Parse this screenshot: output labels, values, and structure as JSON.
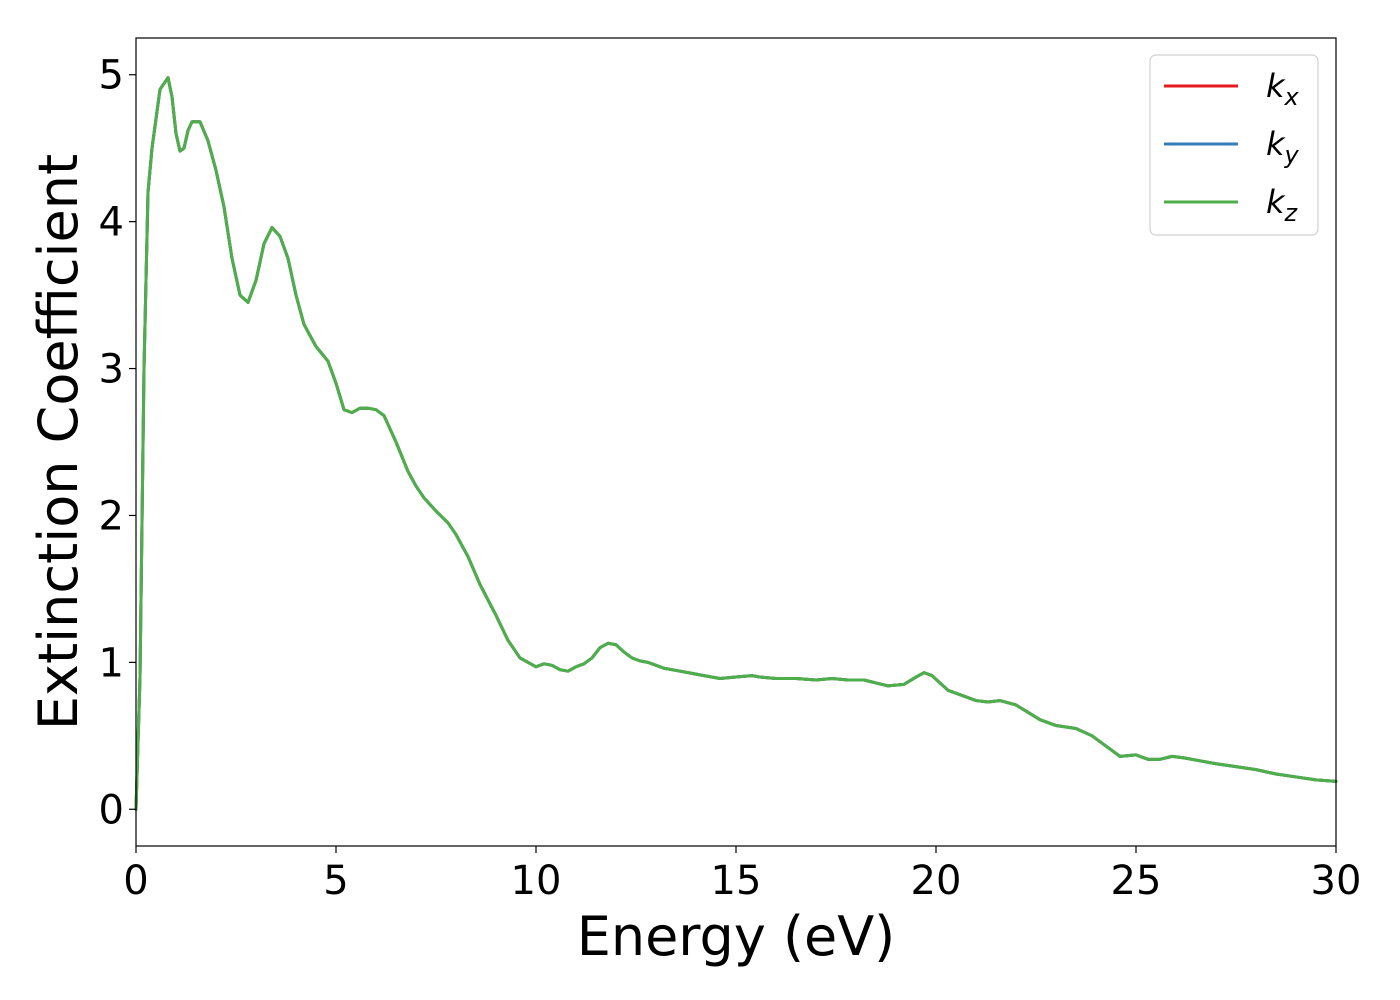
{
  "chart_data": {
    "type": "line",
    "title": "",
    "xlabel": "Energy (eV)",
    "ylabel": "Extinction Coefficient",
    "xlim": [
      0,
      30
    ],
    "ylim": [
      -0.25,
      5.25
    ],
    "xticks": [
      0,
      5,
      10,
      15,
      20,
      25,
      30
    ],
    "xtick_labels": [
      "0",
      "5",
      "10",
      "15",
      "20",
      "25",
      "30"
    ],
    "yticks": [
      0,
      1,
      2,
      3,
      4,
      5
    ],
    "ytick_labels": [
      "0",
      "1",
      "2",
      "3",
      "4",
      "5"
    ],
    "grid": false,
    "legend_position": "top-right",
    "x": [
      0,
      0.1,
      0.2,
      0.3,
      0.4,
      0.5,
      0.6,
      0.8,
      0.9,
      1.0,
      1.1,
      1.2,
      1.3,
      1.4,
      1.6,
      1.8,
      2.0,
      2.2,
      2.4,
      2.6,
      2.8,
      3.0,
      3.2,
      3.4,
      3.6,
      3.8,
      4.0,
      4.2,
      4.5,
      4.8,
      5.0,
      5.2,
      5.4,
      5.6,
      5.8,
      6.0,
      6.2,
      6.5,
      6.8,
      7.0,
      7.2,
      7.5,
      7.8,
      8.0,
      8.3,
      8.6,
      9.0,
      9.3,
      9.6,
      10.0,
      10.2,
      10.4,
      10.6,
      10.8,
      11.0,
      11.2,
      11.4,
      11.6,
      11.8,
      12.0,
      12.2,
      12.4,
      12.6,
      12.8,
      13.0,
      13.2,
      13.4,
      13.8,
      14.2,
      14.6,
      15.0,
      15.4,
      15.6,
      16.0,
      16.5,
      17.0,
      17.4,
      17.8,
      18.2,
      18.5,
      18.8,
      19.2,
      19.5,
      19.7,
      19.9,
      20.1,
      20.3,
      20.6,
      21.0,
      21.3,
      21.6,
      22.0,
      22.3,
      22.6,
      23.0,
      23.5,
      23.9,
      24.3,
      24.6,
      25.0,
      25.3,
      25.6,
      25.9,
      26.2,
      26.6,
      27.0,
      27.5,
      28.0,
      28.5,
      29.0,
      29.5,
      30.0
    ],
    "series": [
      {
        "name": "k_x",
        "color": "#e41a1c",
        "values": [
          0.0,
          0.9,
          3.0,
          4.2,
          4.5,
          4.7,
          4.9,
          4.98,
          4.85,
          4.6,
          4.48,
          4.5,
          4.62,
          4.68,
          4.68,
          4.55,
          4.35,
          4.1,
          3.75,
          3.5,
          3.45,
          3.6,
          3.85,
          3.96,
          3.9,
          3.75,
          3.5,
          3.3,
          3.15,
          3.05,
          2.9,
          2.72,
          2.7,
          2.73,
          2.73,
          2.72,
          2.68,
          2.5,
          2.3,
          2.2,
          2.12,
          2.03,
          1.95,
          1.87,
          1.72,
          1.53,
          1.32,
          1.15,
          1.03,
          0.97,
          0.99,
          0.98,
          0.95,
          0.94,
          0.97,
          0.99,
          1.03,
          1.1,
          1.13,
          1.12,
          1.07,
          1.03,
          1.01,
          1.0,
          0.98,
          0.96,
          0.95,
          0.93,
          0.91,
          0.89,
          0.9,
          0.91,
          0.9,
          0.89,
          0.89,
          0.88,
          0.89,
          0.88,
          0.88,
          0.86,
          0.84,
          0.85,
          0.9,
          0.93,
          0.91,
          0.86,
          0.81,
          0.78,
          0.74,
          0.73,
          0.74,
          0.71,
          0.66,
          0.61,
          0.57,
          0.55,
          0.5,
          0.42,
          0.36,
          0.37,
          0.34,
          0.34,
          0.36,
          0.35,
          0.33,
          0.31,
          0.29,
          0.27,
          0.24,
          0.22,
          0.2,
          0.19
        ]
      },
      {
        "name": "k_y",
        "color": "#377eb8",
        "values": [
          0.0,
          0.9,
          3.0,
          4.2,
          4.5,
          4.7,
          4.9,
          4.98,
          4.85,
          4.6,
          4.48,
          4.5,
          4.62,
          4.68,
          4.68,
          4.55,
          4.35,
          4.1,
          3.75,
          3.5,
          3.45,
          3.6,
          3.85,
          3.96,
          3.9,
          3.75,
          3.5,
          3.3,
          3.15,
          3.05,
          2.9,
          2.72,
          2.7,
          2.73,
          2.73,
          2.72,
          2.68,
          2.5,
          2.3,
          2.2,
          2.12,
          2.03,
          1.95,
          1.87,
          1.72,
          1.53,
          1.32,
          1.15,
          1.03,
          0.97,
          0.99,
          0.98,
          0.95,
          0.94,
          0.97,
          0.99,
          1.03,
          1.1,
          1.13,
          1.12,
          1.07,
          1.03,
          1.01,
          1.0,
          0.98,
          0.96,
          0.95,
          0.93,
          0.91,
          0.89,
          0.9,
          0.91,
          0.9,
          0.89,
          0.89,
          0.88,
          0.89,
          0.88,
          0.88,
          0.86,
          0.84,
          0.85,
          0.9,
          0.93,
          0.91,
          0.86,
          0.81,
          0.78,
          0.74,
          0.73,
          0.74,
          0.71,
          0.66,
          0.61,
          0.57,
          0.55,
          0.5,
          0.42,
          0.36,
          0.37,
          0.34,
          0.34,
          0.36,
          0.35,
          0.33,
          0.31,
          0.29,
          0.27,
          0.24,
          0.22,
          0.2,
          0.19
        ]
      },
      {
        "name": "k_z",
        "color": "#4daf4a",
        "values": [
          0.0,
          0.9,
          3.0,
          4.2,
          4.5,
          4.7,
          4.9,
          4.98,
          4.85,
          4.6,
          4.48,
          4.5,
          4.62,
          4.68,
          4.68,
          4.55,
          4.35,
          4.1,
          3.75,
          3.5,
          3.45,
          3.6,
          3.85,
          3.96,
          3.9,
          3.75,
          3.5,
          3.3,
          3.15,
          3.05,
          2.9,
          2.72,
          2.7,
          2.73,
          2.73,
          2.72,
          2.68,
          2.5,
          2.3,
          2.2,
          2.12,
          2.03,
          1.95,
          1.87,
          1.72,
          1.53,
          1.32,
          1.15,
          1.03,
          0.97,
          0.99,
          0.98,
          0.95,
          0.94,
          0.97,
          0.99,
          1.03,
          1.1,
          1.13,
          1.12,
          1.07,
          1.03,
          1.01,
          1.0,
          0.98,
          0.96,
          0.95,
          0.93,
          0.91,
          0.89,
          0.9,
          0.91,
          0.9,
          0.89,
          0.89,
          0.88,
          0.89,
          0.88,
          0.88,
          0.86,
          0.84,
          0.85,
          0.9,
          0.93,
          0.91,
          0.86,
          0.81,
          0.78,
          0.74,
          0.73,
          0.74,
          0.71,
          0.66,
          0.61,
          0.57,
          0.55,
          0.5,
          0.42,
          0.36,
          0.37,
          0.34,
          0.34,
          0.36,
          0.35,
          0.33,
          0.31,
          0.29,
          0.27,
          0.24,
          0.22,
          0.2,
          0.19
        ]
      }
    ],
    "legend": [
      {
        "base": "k",
        "sub": "x",
        "color": "#e41a1c"
      },
      {
        "base": "k",
        "sub": "y",
        "color": "#377eb8"
      },
      {
        "base": "k",
        "sub": "z",
        "color": "#4daf4a"
      }
    ]
  }
}
